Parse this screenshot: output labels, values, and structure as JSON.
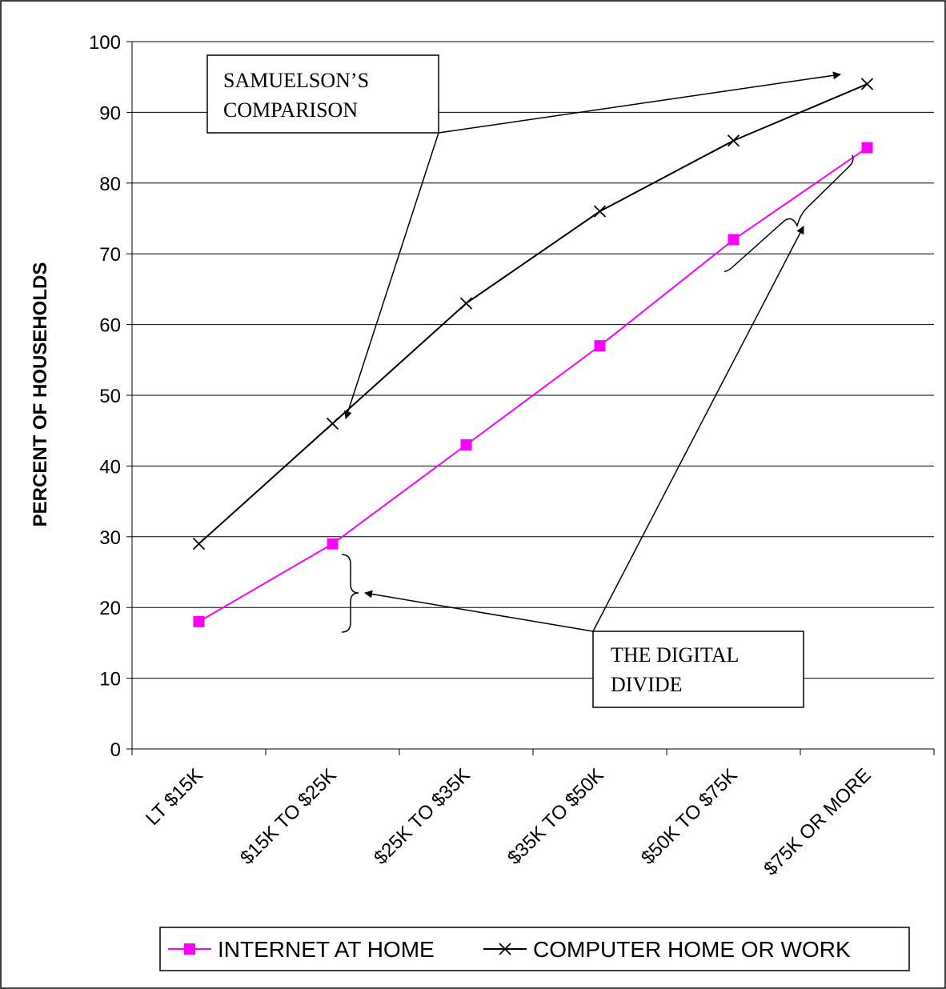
{
  "chart_data": {
    "type": "line",
    "ylabel": "PERCENT OF HOUSEHOLDS",
    "xlabel": "",
    "ylim": [
      0,
      100
    ],
    "yticks": [
      0,
      10,
      20,
      30,
      40,
      50,
      60,
      70,
      80,
      90,
      100
    ],
    "categories": [
      "LT $15K",
      "$15K TO $25K",
      "$25K TO $35K",
      "$35K TO $50K",
      "$50K TO $75K",
      "$75K OR MORE"
    ],
    "series": [
      {
        "name": "INTERNET AT HOME",
        "color": "#ff00ff",
        "marker": "square",
        "values": [
          18,
          29,
          43,
          57,
          72,
          85
        ]
      },
      {
        "name": "COMPUTER HOME OR WORK",
        "color": "#000000",
        "marker": "x",
        "values": [
          29,
          46,
          63,
          76,
          86,
          94
        ]
      }
    ],
    "annotations": [
      {
        "lines": [
          "SAMUELSON’S",
          "COMPARISON"
        ]
      },
      {
        "lines": [
          "THE DIGITAL",
          "DIVIDE"
        ]
      }
    ],
    "grid": true,
    "legend_position": "bottom"
  }
}
